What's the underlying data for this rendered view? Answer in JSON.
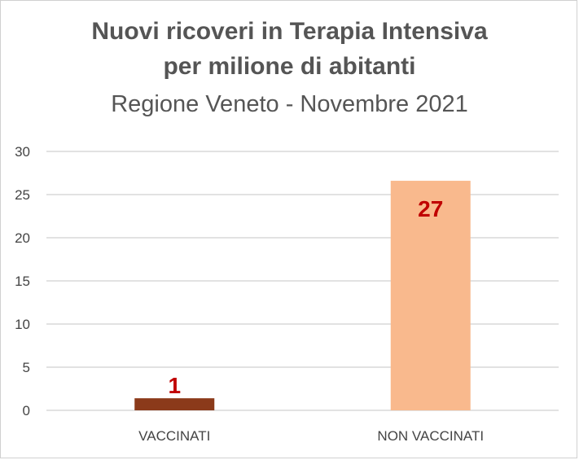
{
  "chart_data": {
    "type": "bar",
    "title_line1": "Nuovi ricoveri in Terapia Intensiva",
    "title_line2": "per milione di abitanti",
    "subtitle": "Regione Veneto - Novembre 2021",
    "categories": [
      "VACCINATI",
      "NON VACCINATI"
    ],
    "values": [
      1.4,
      26.6
    ],
    "data_labels": [
      "1",
      "27"
    ],
    "ylim": [
      0,
      30
    ],
    "yticks": [
      0,
      5,
      10,
      15,
      20,
      25,
      30
    ],
    "grid": true,
    "legend": "none",
    "colors": [
      "#8b3a1a",
      "#f9b98d"
    ],
    "label_color": "#c00000"
  }
}
